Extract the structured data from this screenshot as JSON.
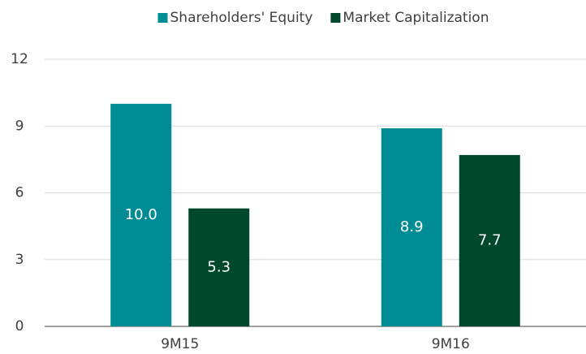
{
  "chart_data": {
    "type": "bar",
    "categories": [
      "9M15",
      "9M16"
    ],
    "series": [
      {
        "name": "Shareholders' Equity",
        "color": "#008c95",
        "values": [
          10.0,
          8.9
        ],
        "value_labels": [
          "10.0",
          "8.9"
        ]
      },
      {
        "name": "Market Capitalization",
        "color": "#00482b",
        "values": [
          5.3,
          7.7
        ],
        "value_labels": [
          "5.3",
          "7.7"
        ]
      }
    ],
    "ylim": [
      0,
      12
    ],
    "yticks": [
      0,
      3,
      6,
      9,
      12
    ],
    "grid": true,
    "legend": "top"
  }
}
